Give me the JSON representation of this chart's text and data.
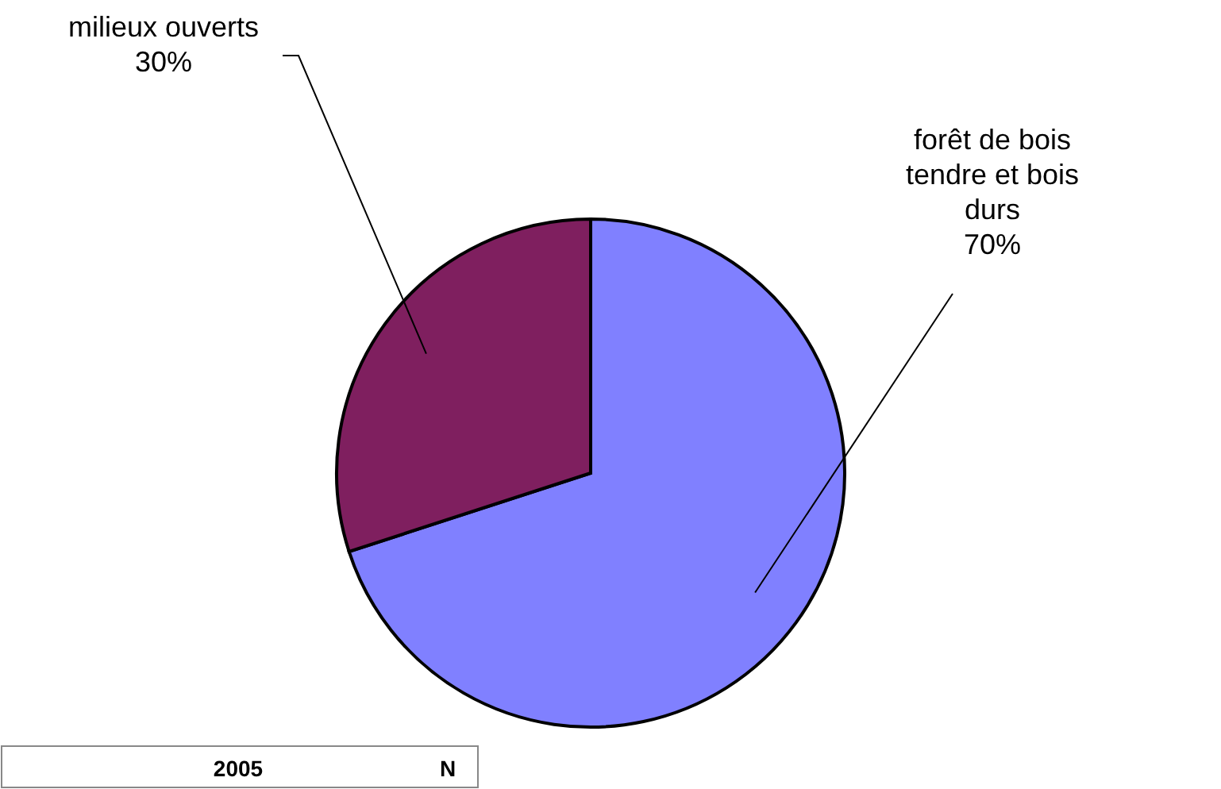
{
  "chart_data": {
    "type": "pie",
    "categories": [
      "forêt de bois tendre et bois durs",
      "milieux ouverts"
    ],
    "values": [
      70,
      30
    ],
    "value_labels": [
      "70%",
      "30%"
    ],
    "colors": [
      "#8080ff",
      "#7f1f5f"
    ],
    "annotations": [
      "2005",
      "N"
    ]
  }
}
